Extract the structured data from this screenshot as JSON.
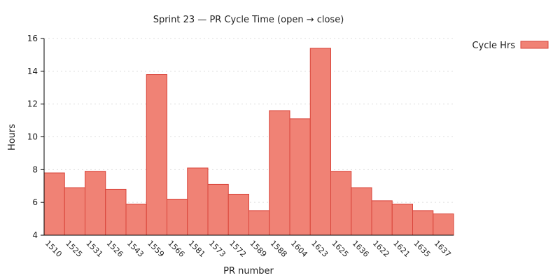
{
  "chart_data": {
    "type": "bar",
    "title": "Sprint 23 — PR Cycle Time (open → close)",
    "xlabel": "PR number",
    "ylabel": "Hours",
    "ylim": [
      4,
      16
    ],
    "yticks": [
      4,
      6,
      8,
      10,
      12,
      14,
      16
    ],
    "grid": true,
    "legend_position": "top-right",
    "colors": {
      "fill": "#f08275",
      "stroke": "#d9443a"
    },
    "categories": [
      "1510",
      "1525",
      "1531",
      "1526",
      "1543",
      "1559",
      "1566",
      "1581",
      "1573",
      "1572",
      "1589",
      "1588",
      "1604",
      "1623",
      "1625",
      "1636",
      "1622",
      "1621",
      "1635",
      "1637"
    ],
    "series": [
      {
        "name": "Cycle Hrs",
        "values": [
          7.8,
          6.9,
          7.9,
          6.8,
          5.9,
          13.8,
          6.2,
          8.1,
          7.1,
          6.5,
          5.5,
          11.6,
          11.1,
          15.4,
          7.9,
          6.9,
          6.1,
          5.9,
          5.5,
          5.3
        ]
      }
    ]
  }
}
